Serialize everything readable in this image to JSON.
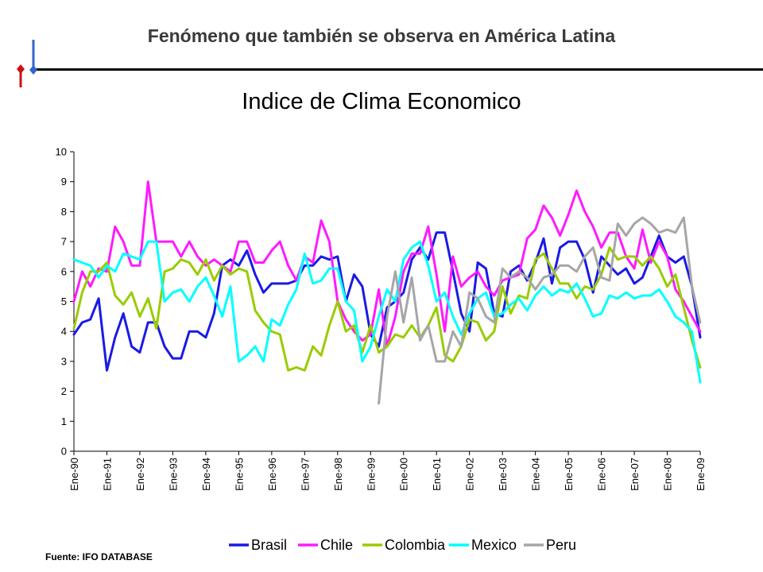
{
  "slide": {
    "title": "Fenómeno que también se observa en América Latina",
    "source": "Fuente: IFO DATABASE"
  },
  "colors": {
    "Brasil": "#1a1ae6",
    "Chile": "#ff1aff",
    "Colombia": "#99cc00",
    "Mexico": "#00ffff",
    "Peru": "#a6a6a6",
    "logo_blue": "#3366cc",
    "logo_red": "#cc1111"
  },
  "chart_data": {
    "type": "line",
    "title": "Indice de Clima Economico",
    "xlabel": "",
    "ylabel": "",
    "ylim": [
      0,
      10
    ],
    "yticks": [
      0,
      1,
      2,
      3,
      4,
      5,
      6,
      7,
      8,
      9,
      10
    ],
    "xlim": [
      1990,
      2009
    ],
    "xtick_labels": [
      "Ene-90",
      "Ene-91",
      "Ene-92",
      "Ene-93",
      "Ene-94",
      "Ene-95",
      "Ene-96",
      "Ene-97",
      "Ene-98",
      "Ene-99",
      "Ene-00",
      "Ene-01",
      "Ene-02",
      "Ene-03",
      "Ene-04",
      "Ene-05",
      "Ene-06",
      "Ene-07",
      "Ene-08",
      "Ene-09"
    ],
    "grid": false,
    "legend_position": "bottom",
    "series": [
      {
        "name": "Brasil",
        "x": [
          1990.0,
          1990.25,
          1990.5,
          1990.75,
          1991.0,
          1991.25,
          1991.5,
          1991.75,
          1992.0,
          1992.25,
          1992.5,
          1992.75,
          1993.0,
          1993.25,
          1993.5,
          1993.75,
          1994.0,
          1994.25,
          1994.5,
          1994.75,
          1995.0,
          1995.25,
          1995.5,
          1995.75,
          1996.0,
          1996.25,
          1996.5,
          1996.75,
          1997.0,
          1997.25,
          1997.5,
          1997.75,
          1998.0,
          1998.25,
          1998.5,
          1998.75,
          1999.0,
          1999.25,
          1999.5,
          1999.75,
          2000.0,
          2000.25,
          2000.5,
          2000.75,
          2001.0,
          2001.25,
          2001.5,
          2001.75,
          2002.0,
          2002.25,
          2002.5,
          2002.75,
          2003.0,
          2003.25,
          2003.5,
          2003.75,
          2004.0,
          2004.25,
          2004.5,
          2004.75,
          2005.0,
          2005.25,
          2005.5,
          2005.75,
          2006.0,
          2006.25,
          2006.5,
          2006.75,
          2007.0,
          2007.25,
          2007.5,
          2007.75,
          2008.0,
          2008.25,
          2008.5,
          2008.75,
          2009.0
        ],
        "y": [
          3.9,
          4.3,
          4.4,
          5.1,
          2.7,
          3.8,
          4.6,
          3.5,
          3.3,
          4.3,
          4.3,
          3.5,
          3.1,
          3.1,
          4.0,
          4.0,
          3.8,
          4.6,
          6.2,
          6.4,
          6.2,
          6.7,
          5.9,
          5.3,
          5.6,
          5.6,
          5.6,
          5.7,
          6.2,
          6.2,
          6.5,
          6.4,
          6.5,
          5.0,
          5.9,
          5.5,
          3.9,
          3.5,
          4.8,
          5.0,
          5.3,
          6.4,
          6.8,
          6.4,
          7.3,
          7.3,
          6.0,
          4.6,
          4.0,
          6.3,
          6.1,
          4.6,
          4.5,
          6.0,
          6.2,
          5.7,
          6.3,
          7.1,
          5.6,
          6.8,
          7.0,
          7.0,
          6.4,
          5.3,
          6.5,
          6.2,
          5.9,
          6.1,
          5.6,
          5.8,
          6.5,
          7.2,
          6.5,
          6.3,
          6.5,
          5.5,
          3.8
        ]
      },
      {
        "name": "Chile",
        "x": [
          1990.0,
          1990.25,
          1990.5,
          1990.75,
          1991.0,
          1991.25,
          1991.5,
          1991.75,
          1992.0,
          1992.25,
          1992.5,
          1992.75,
          1993.0,
          1993.25,
          1993.5,
          1993.75,
          1994.0,
          1994.25,
          1994.5,
          1994.75,
          1995.0,
          1995.25,
          1995.5,
          1995.75,
          1996.0,
          1996.25,
          1996.5,
          1996.75,
          1997.0,
          1997.25,
          1997.5,
          1997.75,
          1998.0,
          1998.25,
          1998.5,
          1998.75,
          1999.0,
          1999.25,
          1999.5,
          1999.75,
          2000.0,
          2000.25,
          2000.5,
          2000.75,
          2001.0,
          2001.25,
          2001.5,
          2001.75,
          2002.0,
          2002.25,
          2002.5,
          2002.75,
          2003.0,
          2003.25,
          2003.5,
          2003.75,
          2004.0,
          2004.25,
          2004.5,
          2004.75,
          2005.0,
          2005.25,
          2005.5,
          2005.75,
          2006.0,
          2006.25,
          2006.5,
          2006.75,
          2007.0,
          2007.25,
          2007.5,
          2007.75,
          2008.0,
          2008.25,
          2008.5,
          2008.75,
          2009.0
        ],
        "y": [
          5.0,
          6.0,
          5.5,
          6.1,
          6.0,
          7.5,
          7.0,
          6.2,
          6.2,
          9.0,
          7.0,
          7.0,
          7.0,
          6.5,
          7.0,
          6.5,
          6.2,
          6.4,
          6.2,
          6.0,
          7.0,
          7.0,
          6.3,
          6.3,
          6.7,
          7.0,
          6.2,
          5.7,
          6.5,
          6.3,
          7.7,
          7.0,
          5.0,
          4.4,
          4.0,
          3.7,
          3.9,
          5.4,
          3.5,
          4.5,
          6.0,
          6.6,
          6.6,
          7.5,
          5.9,
          4.0,
          6.5,
          5.5,
          5.8,
          6.0,
          5.5,
          5.2,
          5.7,
          5.8,
          5.9,
          7.1,
          7.4,
          8.2,
          7.8,
          7.2,
          7.9,
          8.7,
          8.0,
          7.5,
          6.8,
          7.3,
          7.3,
          6.5,
          6.1,
          7.4,
          6.3,
          7.0,
          6.5,
          5.4,
          5.0,
          4.5,
          4.0
        ]
      },
      {
        "name": "Colombia",
        "x": [
          1990.0,
          1990.25,
          1990.5,
          1990.75,
          1991.0,
          1991.25,
          1991.5,
          1991.75,
          1992.0,
          1992.25,
          1992.5,
          1992.75,
          1993.0,
          1993.25,
          1993.5,
          1993.75,
          1994.0,
          1994.25,
          1994.5,
          1994.75,
          1995.0,
          1995.25,
          1995.5,
          1995.75,
          1996.0,
          1996.25,
          1996.5,
          1996.75,
          1997.0,
          1997.25,
          1997.5,
          1997.75,
          1998.0,
          1998.25,
          1998.5,
          1998.75,
          1999.0,
          1999.25,
          1999.5,
          1999.75,
          2000.0,
          2000.25,
          2000.5,
          2000.75,
          2001.0,
          2001.25,
          2001.5,
          2001.75,
          2002.0,
          2002.25,
          2002.5,
          2002.75,
          2003.0,
          2003.25,
          2003.5,
          2003.75,
          2004.0,
          2004.25,
          2004.5,
          2004.75,
          2005.0,
          2005.25,
          2005.5,
          2005.75,
          2006.0,
          2006.25,
          2006.5,
          2006.75,
          2007.0,
          2007.25,
          2007.5,
          2007.75,
          2008.0,
          2008.25,
          2008.5,
          2008.75,
          2009.0
        ],
        "y": [
          4.1,
          5.3,
          6.0,
          6.0,
          6.3,
          5.2,
          4.9,
          5.3,
          4.5,
          5.1,
          4.1,
          6.0,
          6.1,
          6.4,
          6.3,
          5.9,
          6.4,
          5.7,
          6.2,
          5.9,
          6.1,
          6.0,
          4.7,
          4.3,
          4.0,
          3.9,
          2.7,
          2.8,
          2.7,
          3.5,
          3.2,
          4.2,
          5.0,
          4.0,
          4.2,
          3.3,
          4.2,
          3.3,
          3.5,
          3.9,
          3.8,
          4.2,
          3.8,
          4.2,
          4.8,
          3.2,
          3.0,
          3.5,
          4.4,
          4.3,
          3.7,
          4.0,
          5.5,
          4.6,
          5.2,
          5.1,
          6.4,
          6.6,
          6.1,
          5.6,
          5.6,
          5.1,
          5.5,
          5.4,
          5.9,
          6.8,
          6.4,
          6.5,
          6.5,
          6.2,
          6.5,
          6.1,
          5.5,
          5.9,
          4.8,
          3.7,
          2.8
        ]
      },
      {
        "name": "Mexico",
        "x": [
          1990.0,
          1990.25,
          1990.5,
          1990.75,
          1991.0,
          1991.25,
          1991.5,
          1991.75,
          1992.0,
          1992.25,
          1992.5,
          1992.75,
          1993.0,
          1993.25,
          1993.5,
          1993.75,
          1994.0,
          1994.25,
          1994.5,
          1994.75,
          1995.0,
          1995.25,
          1995.5,
          1995.75,
          1996.0,
          1996.25,
          1996.5,
          1996.75,
          1997.0,
          1997.25,
          1997.5,
          1997.75,
          1998.0,
          1998.25,
          1998.5,
          1998.75,
          1999.0,
          1999.25,
          1999.5,
          1999.75,
          2000.0,
          2000.25,
          2000.5,
          2000.75,
          2001.0,
          2001.25,
          2001.5,
          2001.75,
          2002.0,
          2002.25,
          2002.5,
          2002.75,
          2003.0,
          2003.25,
          2003.5,
          2003.75,
          2004.0,
          2004.25,
          2004.5,
          2004.75,
          2005.0,
          2005.25,
          2005.5,
          2005.75,
          2006.0,
          2006.25,
          2006.5,
          2006.75,
          2007.0,
          2007.25,
          2007.5,
          2007.75,
          2008.0,
          2008.25,
          2008.5,
          2008.75,
          2009.0
        ],
        "y": [
          6.4,
          6.3,
          6.2,
          5.8,
          6.2,
          6.0,
          6.6,
          6.5,
          6.4,
          7.0,
          7.0,
          5.0,
          5.3,
          5.4,
          5.0,
          5.5,
          5.8,
          5.2,
          4.5,
          5.5,
          3.0,
          3.2,
          3.5,
          3.0,
          4.4,
          4.2,
          4.9,
          5.4,
          6.6,
          5.6,
          5.7,
          6.1,
          6.1,
          5.0,
          4.7,
          3.0,
          3.5,
          4.5,
          5.4,
          5.0,
          6.4,
          6.8,
          7.0,
          6.2,
          5.0,
          5.3,
          4.5,
          3.9,
          4.6,
          5.1,
          5.3,
          4.5,
          4.6,
          4.9,
          5.1,
          4.7,
          5.2,
          5.5,
          5.2,
          5.4,
          5.3,
          5.6,
          5.1,
          4.5,
          4.6,
          5.2,
          5.1,
          5.3,
          5.1,
          5.2,
          5.2,
          5.4,
          5.0,
          4.5,
          4.3,
          4.0,
          2.3
        ]
      },
      {
        "name": "Peru",
        "x": [
          1999.25,
          1999.5,
          1999.75,
          2000.0,
          2000.25,
          2000.5,
          2000.75,
          2001.0,
          2001.25,
          2001.5,
          2001.75,
          2002.0,
          2002.25,
          2002.5,
          2002.75,
          2003.0,
          2003.25,
          2003.5,
          2003.75,
          2004.0,
          2004.25,
          2004.5,
          2004.75,
          2005.0,
          2005.25,
          2005.5,
          2005.75,
          2006.0,
          2006.25,
          2006.5,
          2006.75,
          2007.0,
          2007.25,
          2007.5,
          2007.75,
          2008.0,
          2008.25,
          2008.5,
          2008.75,
          2009.0
        ],
        "y": [
          1.6,
          4.5,
          6.0,
          4.3,
          5.8,
          3.7,
          4.2,
          3.0,
          3.0,
          4.0,
          3.5,
          5.3,
          5.1,
          4.5,
          4.3,
          6.1,
          5.8,
          6.0,
          5.8,
          5.4,
          5.8,
          5.9,
          6.2,
          6.2,
          6.0,
          6.5,
          6.8,
          5.8,
          5.7,
          7.6,
          7.2,
          7.6,
          7.8,
          7.6,
          7.3,
          7.4,
          7.3,
          7.8,
          5.5,
          4.3
        ]
      }
    ]
  }
}
